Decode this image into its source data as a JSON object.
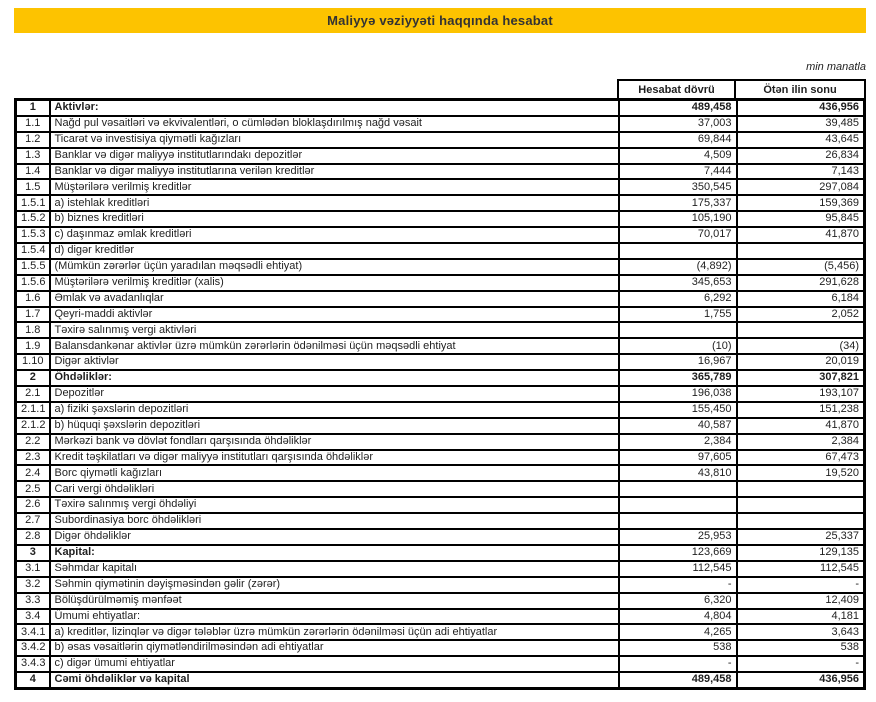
{
  "colors": {
    "accent_yellow": "#FDC300",
    "border": "#000000",
    "text": "#1F1F1F"
  },
  "title_bar": {
    "title": "Maliyyə vəziyyəti haqqında hesabat"
  },
  "unit_note": "min manatla",
  "table": {
    "column_headers": {
      "period": "Hesabat dövrü",
      "prior": "Ötən ilin sonu"
    },
    "rows": [
      {
        "no": "1",
        "label": "Aktivlər:",
        "period": "489,458",
        "prior": "436,956",
        "section": true,
        "bold_values": true
      },
      {
        "no": "1.1",
        "label": "Nağd pul vəsaitləri və ekvivalentləri, o cümlədən bloklaşdırılmış nağd vəsait",
        "period": "37,003",
        "prior": "39,485",
        "section": false,
        "bold_values": false
      },
      {
        "no": "1.2",
        "label": "Ticarət və investisiya qiymətli kağızları",
        "period": "69,844",
        "prior": "43,645",
        "section": false,
        "bold_values": false
      },
      {
        "no": "1.3",
        "label": "Banklar və digər maliyyə institutlarındakı depozitlər",
        "period": "4,509",
        "prior": "26,834",
        "section": false,
        "bold_values": false
      },
      {
        "no": "1.4",
        "label": "Banklar və digər maliyyə institutlarına verilən kreditlər",
        "period": "7,444",
        "prior": "7,143",
        "section": false,
        "bold_values": false
      },
      {
        "no": "1.5",
        "label": "Müştərilərə verilmiş kreditlər",
        "period": "350,545",
        "prior": "297,084",
        "section": false,
        "bold_values": false
      },
      {
        "no": "1.5.1",
        "label": "a) istehlak kreditləri",
        "period": "175,337",
        "prior": "159,369",
        "section": false,
        "bold_values": false
      },
      {
        "no": "1.5.2",
        "label": "b) biznes kreditləri",
        "period": "105,190",
        "prior": "95,845",
        "section": false,
        "bold_values": false
      },
      {
        "no": "1.5.3",
        "label": "c) daşınmaz əmlak kreditləri",
        "period": "70,017",
        "prior": "41,870",
        "section": false,
        "bold_values": false
      },
      {
        "no": "1.5.4",
        "label": "d) digər kreditlər",
        "period": "",
        "prior": "",
        "section": false,
        "bold_values": false
      },
      {
        "no": "1.5.5",
        "label": "(Mümkün zərərlər üçün yaradılan məqsədli ehtiyat)",
        "period": "(4,892)",
        "prior": "(5,456)",
        "section": false,
        "bold_values": false
      },
      {
        "no": "1.5.6",
        "label": "Müştərilərə verilmiş kreditlər (xalis)",
        "period": "345,653",
        "prior": "291,628",
        "section": false,
        "bold_values": false
      },
      {
        "no": "1.6",
        "label": "Əmlak və avadanlıqlar",
        "period": "6,292",
        "prior": "6,184",
        "section": false,
        "bold_values": false
      },
      {
        "no": "1.7",
        "label": "Qeyri-maddi aktivlər",
        "period": "1,755",
        "prior": "2,052",
        "section": false,
        "bold_values": false
      },
      {
        "no": "1.8",
        "label": "Təxirə salınmış vergi aktivləri",
        "period": "",
        "prior": "",
        "section": false,
        "bold_values": false
      },
      {
        "no": "1.9",
        "label": "Balansdankənar aktivlər üzrə mümkün zərərlərin ödənilməsi üçün məqsədli ehtiyat",
        "period": "(10)",
        "prior": "(34)",
        "section": false,
        "bold_values": false
      },
      {
        "no": "1.10",
        "label": "Digər aktivlər",
        "period": "16,967",
        "prior": "20,019",
        "section": false,
        "bold_values": false
      },
      {
        "no": "2",
        "label": "Öhdəliklər:",
        "period": "365,789",
        "prior": "307,821",
        "section": true,
        "bold_values": true
      },
      {
        "no": "2.1",
        "label": "Depozitlər",
        "period": "196,038",
        "prior": "193,107",
        "section": false,
        "bold_values": false
      },
      {
        "no": "2.1.1",
        "label": "a) fiziki şəxslərin depozitləri",
        "period": "155,450",
        "prior": "151,238",
        "section": false,
        "bold_values": false
      },
      {
        "no": "2.1.2",
        "label": "b) hüquqi şəxslərin depozitləri",
        "period": "40,587",
        "prior": "41,870",
        "section": false,
        "bold_values": false
      },
      {
        "no": "2.2",
        "label": "Mərkəzi bank və dövlət fondları qarşısında öhdəliklər",
        "period": "2,384",
        "prior": "2,384",
        "section": false,
        "bold_values": false
      },
      {
        "no": "2.3",
        "label": "Kredit təşkilatları və digər maliyyə institutları qarşısında öhdəliklər",
        "period": "97,605",
        "prior": "67,473",
        "section": false,
        "bold_values": false
      },
      {
        "no": "2.4",
        "label": "Borc qiymətli kağızları",
        "period": "43,810",
        "prior": "19,520",
        "section": false,
        "bold_values": false
      },
      {
        "no": "2.5",
        "label": "Cari vergi öhdəlikləri",
        "period": "",
        "prior": "",
        "section": false,
        "bold_values": false
      },
      {
        "no": "2.6",
        "label": "Təxirə salınmış vergi öhdəliyi",
        "period": "",
        "prior": "",
        "section": false,
        "bold_values": false
      },
      {
        "no": "2.7",
        "label": "Subordinasiya borc öhdəlikləri",
        "period": "",
        "prior": "",
        "section": false,
        "bold_values": false
      },
      {
        "no": "2.8",
        "label": "Digər öhdəliklər",
        "period": "25,953",
        "prior": "25,337",
        "section": false,
        "bold_values": false
      },
      {
        "no": "3",
        "label": "Kapital:",
        "period": "123,669",
        "prior": "129,135",
        "section": true,
        "bold_values": false
      },
      {
        "no": "3.1",
        "label": "Səhmdar kapitalı",
        "period": "112,545",
        "prior": "112,545",
        "section": false,
        "bold_values": false
      },
      {
        "no": "3.2",
        "label": "Səhmin qiymətinin dəyişməsindən gəlir (zərər)",
        "period": "-",
        "prior": "-",
        "section": false,
        "bold_values": false
      },
      {
        "no": "3.3",
        "label": "Bölüşdürülməmiş mənfəət",
        "period": "6,320",
        "prior": "12,409",
        "section": false,
        "bold_values": false
      },
      {
        "no": "3.4",
        "label": "Ümumi ehtiyatlar:",
        "period": "4,804",
        "prior": "4,181",
        "section": false,
        "bold_values": false
      },
      {
        "no": "3.4.1",
        "label": "a) kreditlər, lizinqlər və digər tələblər üzrə mümkün zərərlərin ödənilməsi üçün adi ehtiyatlar",
        "period": "4,265",
        "prior": "3,643",
        "section": false,
        "bold_values": false
      },
      {
        "no": "3.4.2",
        "label": "b) əsas vəsaitlərin qiymətləndirilməsindən adi ehtiyatlar",
        "period": "538",
        "prior": "538",
        "section": false,
        "bold_values": false
      },
      {
        "no": "3.4.3",
        "label": "c) digər ümumi ehtiyatlar",
        "period": "-",
        "prior": "-",
        "section": false,
        "bold_values": false
      },
      {
        "no": "4",
        "label": "Cəmi öhdəliklər və kapital",
        "period": "489,458",
        "prior": "436,956",
        "section": true,
        "bold_values": true
      }
    ]
  }
}
